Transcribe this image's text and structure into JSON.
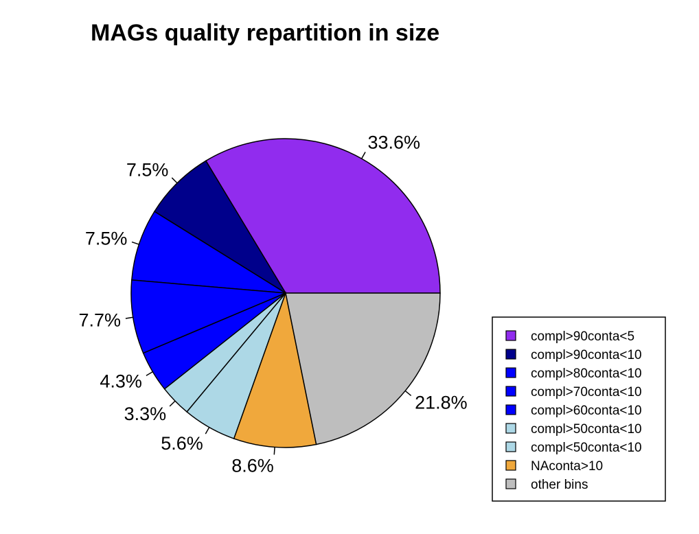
{
  "chart_data": {
    "type": "pie",
    "title": "MAGs quality repartition in size",
    "slices": [
      {
        "label": "compl>90conta<5",
        "value": 33.6,
        "display": "33.6%",
        "color": "#912CEE"
      },
      {
        "label": "compl>90conta<10",
        "value": 7.5,
        "display": "7.5%",
        "color": "#00008B"
      },
      {
        "label": "compl>80conta<10",
        "value": 7.5,
        "display": "7.5%",
        "color": "#0000FF"
      },
      {
        "label": "compl>70conta<10",
        "value": 7.7,
        "display": "7.7%",
        "color": "#0000FF"
      },
      {
        "label": "compl>60conta<10",
        "value": 4.3,
        "display": "4.3%",
        "color": "#0000FF"
      },
      {
        "label": "compl>50conta<10",
        "value": 3.3,
        "display": "3.3%",
        "color": "#ADD8E6"
      },
      {
        "label": "compl<50conta<10",
        "value": 5.6,
        "display": "5.6%",
        "color": "#ADD8E6"
      },
      {
        "label": "NAconta>10",
        "value": 8.6,
        "display": "8.6%",
        "color": "#F0A83C"
      },
      {
        "label": "other bins",
        "value": 21.8,
        "display": "21.8%",
        "color": "#BEBEBE"
      }
    ],
    "start_angle_deg": 0,
    "direction": "counterclockwise",
    "legend_position": "bottom-right"
  }
}
